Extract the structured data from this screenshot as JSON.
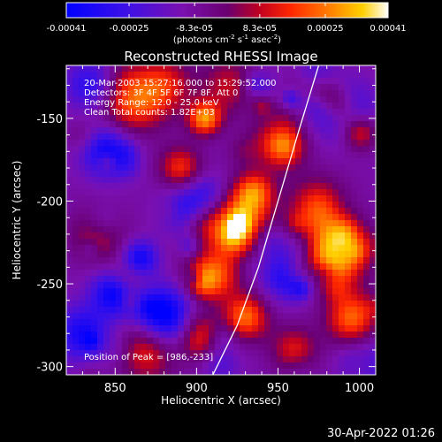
{
  "colorbar": {
    "tick_labels": [
      "-0.00041",
      "-0.00025",
      "-8.3e-05",
      "8.3e-05",
      "0.00025",
      "0.00041"
    ],
    "unit_main": "(photons cm",
    "unit_exp1": "-2",
    "unit_mid": " s",
    "unit_exp2": "-1",
    "unit_end": " asec",
    "unit_exp3": "-2",
    "unit_close": ")"
  },
  "chart_data": {
    "type": "heatmap",
    "title": "Reconstructed RHESSI Image",
    "xlabel": "Heliocentric X (arcsec)",
    "ylabel": "Heliocentric Y (arcsec)",
    "xlim": [
      820,
      1010
    ],
    "ylim": [
      -305,
      -118
    ],
    "x_ticks": [
      850,
      900,
      950,
      1000
    ],
    "y_ticks": [
      -150,
      -200,
      -250,
      -300
    ],
    "color_range": [
      -0.00041,
      0.00041
    ],
    "colormap": "RHESSI blue-purple-red-yellow-white",
    "annotations": [
      "20-Mar-2003 15:27:16.000 to 15:29:52.000",
      "Detectors: 3F 4F 5F 6F 7F 8F, Att 0",
      "Energy Range: 12.0 - 25.0 keV",
      "Clean     Total counts: 1.82E+03"
    ],
    "peak_label": "Position of Peak = [986,-233]",
    "peak": [
      986,
      -233
    ],
    "limb_curve": [
      [
        910,
        -305
      ],
      [
        925,
        -275
      ],
      [
        938,
        -240
      ],
      [
        950,
        -200
      ],
      [
        962,
        -160
      ],
      [
        975,
        -118
      ]
    ]
  },
  "footer": {
    "timestamp": "30-Apr-2022 01:26"
  }
}
